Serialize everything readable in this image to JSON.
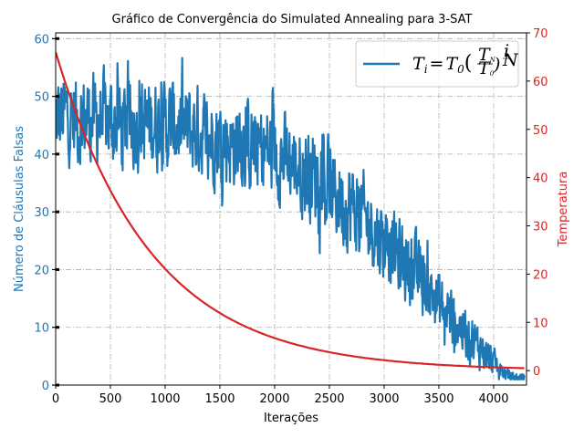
{
  "chart_data": {
    "type": "line",
    "title": "Gráfico de Convergência do Simulated Annealing para 3-SAT",
    "xlabel": "Iterações",
    "ylabel_left": "Número de Cláusulas Falsas",
    "ylabel_right": "Temperatura",
    "xlim": [
      0,
      4300
    ],
    "ylim_left": [
      0,
      61
    ],
    "ylim_right": [
      -3,
      70
    ],
    "x_ticks": [
      0,
      500,
      1000,
      1500,
      2000,
      2500,
      3000,
      3500,
      4000
    ],
    "y_ticks_left": [
      0,
      10,
      20,
      30,
      40,
      50,
      60
    ],
    "y_ticks_right": [
      0,
      10,
      20,
      30,
      40,
      50,
      60,
      70
    ],
    "grid": true,
    "legend_position": "top-right",
    "colors": {
      "left_axis": "#1f77b4",
      "right_axis": "#d62728"
    },
    "series": [
      {
        "name": "",
        "axis": "left",
        "color": "#1f77b4",
        "description_points": {
          "x": [
            0,
            100,
            200,
            300,
            400,
            500,
            600,
            700,
            800,
            900,
            1000,
            1100,
            1200,
            1300,
            1400,
            1500,
            1600,
            1700,
            1800,
            1900,
            2000,
            2100,
            2200,
            2300,
            2400,
            2500,
            2600,
            2700,
            2800,
            2900,
            3000,
            3100,
            3200,
            3300,
            3400,
            3500,
            3600,
            3700,
            3800,
            3900,
            4000,
            4100,
            4200,
            4280
          ],
          "y": [
            46,
            47,
            46,
            46,
            46,
            46,
            45,
            45,
            45,
            45,
            45,
            45,
            44,
            44,
            43,
            43,
            42,
            42,
            41,
            41,
            40,
            39,
            38,
            37,
            36,
            34,
            32,
            31,
            29,
            27,
            25,
            23,
            21,
            19,
            17,
            14,
            12,
            10,
            8,
            6,
            4,
            2,
            1,
            1
          ],
          "spread": [
            7,
            7,
            7,
            7,
            7,
            7,
            7,
            7,
            7,
            7,
            7,
            7,
            7,
            7,
            7,
            7,
            7,
            7,
            7,
            7,
            7,
            7,
            7,
            7,
            7,
            7,
            7,
            7,
            7,
            6,
            6,
            6,
            6,
            6,
            5,
            5,
            5,
            4,
            4,
            3,
            2,
            1,
            1,
            1
          ]
        }
      },
      {
        "name": "T_i = T_0 (T_N / T_0)^(i/N)",
        "axis": "right",
        "color": "#d62728",
        "T0": 66,
        "TN": 0.5,
        "N": 4280,
        "x": [
          0,
          250,
          500,
          750,
          1000,
          1250,
          1500,
          1750,
          2000,
          2500,
          3000,
          3500,
          4000,
          4280
        ],
        "y": [
          66,
          49.6,
          37.3,
          28.1,
          21.1,
          15.9,
          11.9,
          9.0,
          6.7,
          3.8,
          2.1,
          1.2,
          0.7,
          0.5
        ]
      }
    ],
    "legend": {
      "T_symbol": "T",
      "i_sub": "i",
      "zero_sub": "0",
      "N_sub": "N",
      "equals": "="
    }
  }
}
